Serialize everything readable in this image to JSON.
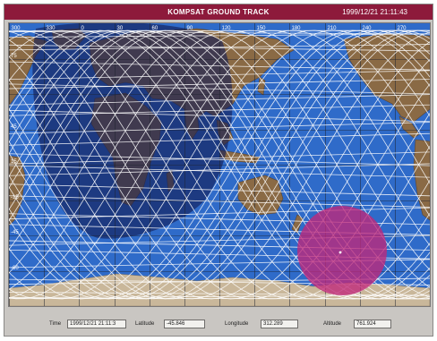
{
  "window": {
    "title": "KOMPSAT GROUND TRACK",
    "timestamp": "1999/12/21 21:11:43"
  },
  "map": {
    "lon_ticks": [
      "300",
      "330",
      "0",
      "30",
      "60",
      "90",
      "120",
      "150",
      "180",
      "210",
      "240",
      "270"
    ],
    "lat_ticks": [
      "75",
      "45",
      "15",
      "-15",
      "-45",
      "-60"
    ],
    "colors": {
      "ocean": "#2f6bc9",
      "land": "#8a6a45",
      "ice": "#c9b79a",
      "grid": "#1e2430",
      "track": "#ffffff",
      "sun_zone": "#141d55",
      "coverage_circle": "#c0287a"
    }
  },
  "status": {
    "time_label": "Time",
    "time_value": "1999/12/21 21:11:3",
    "latitude_label": "Latitude",
    "latitude_value": "-45.846",
    "longitude_label": "Longitude",
    "longitude_value": "312.289",
    "altitude_label": "Altitude",
    "altitude_value": "761.924"
  }
}
